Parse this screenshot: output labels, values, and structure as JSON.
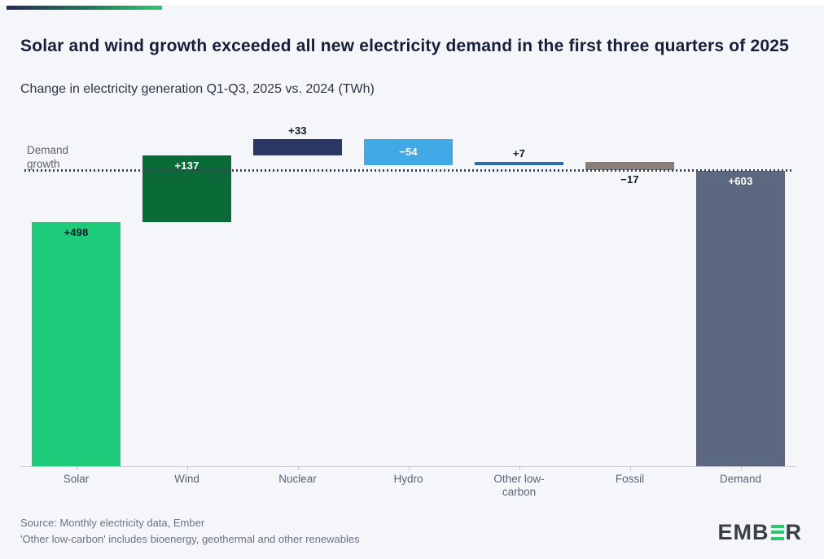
{
  "header": {
    "title": "Solar and wind growth exceeded all new electricity demand in the first three quarters of 2025",
    "subtitle": "Change in electricity generation Q1-Q3, 2025 vs. 2024 (TWh)"
  },
  "annotation": {
    "text": "Demand growth"
  },
  "footer": {
    "source": "Source: Monthly electricity data, Ember",
    "note": "'Other low-carbon' includes bioenergy, geothermal and other renewables"
  },
  "logo": {
    "name": "EMBER",
    "prefix": "EMB",
    "suffix": "R"
  },
  "colors": {
    "page_background": "#f4f6f9",
    "brand_gradient_start": "#242b50",
    "brand_gradient_end": "#2fc873",
    "title_text": "#171e37",
    "axis_text": "#5a6478",
    "footer_text": "#6b7286",
    "reference_line": "#3a4152",
    "logo_green": "#2bc76f",
    "logo_dark": "#3b4046"
  },
  "chart_data": {
    "type": "bar",
    "subtype": "waterfall",
    "title": "Solar and wind growth exceeded all new electricity demand in the first three quarters of 2025",
    "subtitle": "Change in electricity generation Q1-Q3, 2025 vs. 2024 (TWh)",
    "unit": "TWh",
    "ylim": [
      0,
      668
    ],
    "grid": false,
    "legend": false,
    "reference_line": {
      "value": 603,
      "label": "Demand growth",
      "style": "dotted"
    },
    "categories": [
      "Solar",
      "Wind",
      "Nuclear",
      "Hydro",
      "Other low-carbon",
      "Fossil",
      "Demand"
    ],
    "values": [
      498,
      137,
      33,
      -54,
      7,
      -17,
      603
    ],
    "points": [
      {
        "category": "Solar",
        "value": 498,
        "display": "+498",
        "kind": "delta",
        "color": "#1ecb7b",
        "label_placement": "inside-top",
        "label_color": "#121a29"
      },
      {
        "category": "Wind",
        "value": 137,
        "display": "+137",
        "kind": "delta",
        "color": "#0b6b38",
        "label_placement": "inside-top",
        "label_color": "#ffffff"
      },
      {
        "category": "Nuclear",
        "value": 33,
        "display": "+33",
        "kind": "delta",
        "color": "#2a3663",
        "label_placement": "above",
        "label_color": "#121a29"
      },
      {
        "category": "Hydro",
        "value": -54,
        "display": "−54",
        "kind": "delta",
        "color": "#41a9e6",
        "label_placement": "inside-center",
        "label_color": "#ffffff"
      },
      {
        "category": "Other low-carbon",
        "value": 7,
        "display": "+7",
        "kind": "delta",
        "color": "#2a6cb0",
        "label_placement": "above",
        "label_color": "#121a29"
      },
      {
        "category": "Fossil",
        "value": -17,
        "display": "−17",
        "kind": "delta",
        "color": "#8a7f78",
        "label_placement": "below",
        "label_color": "#121a29"
      },
      {
        "category": "Demand",
        "value": 603,
        "display": "+603",
        "kind": "total",
        "color": "#5c6880",
        "label_placement": "inside-top",
        "label_color": "#ffffff"
      }
    ]
  }
}
